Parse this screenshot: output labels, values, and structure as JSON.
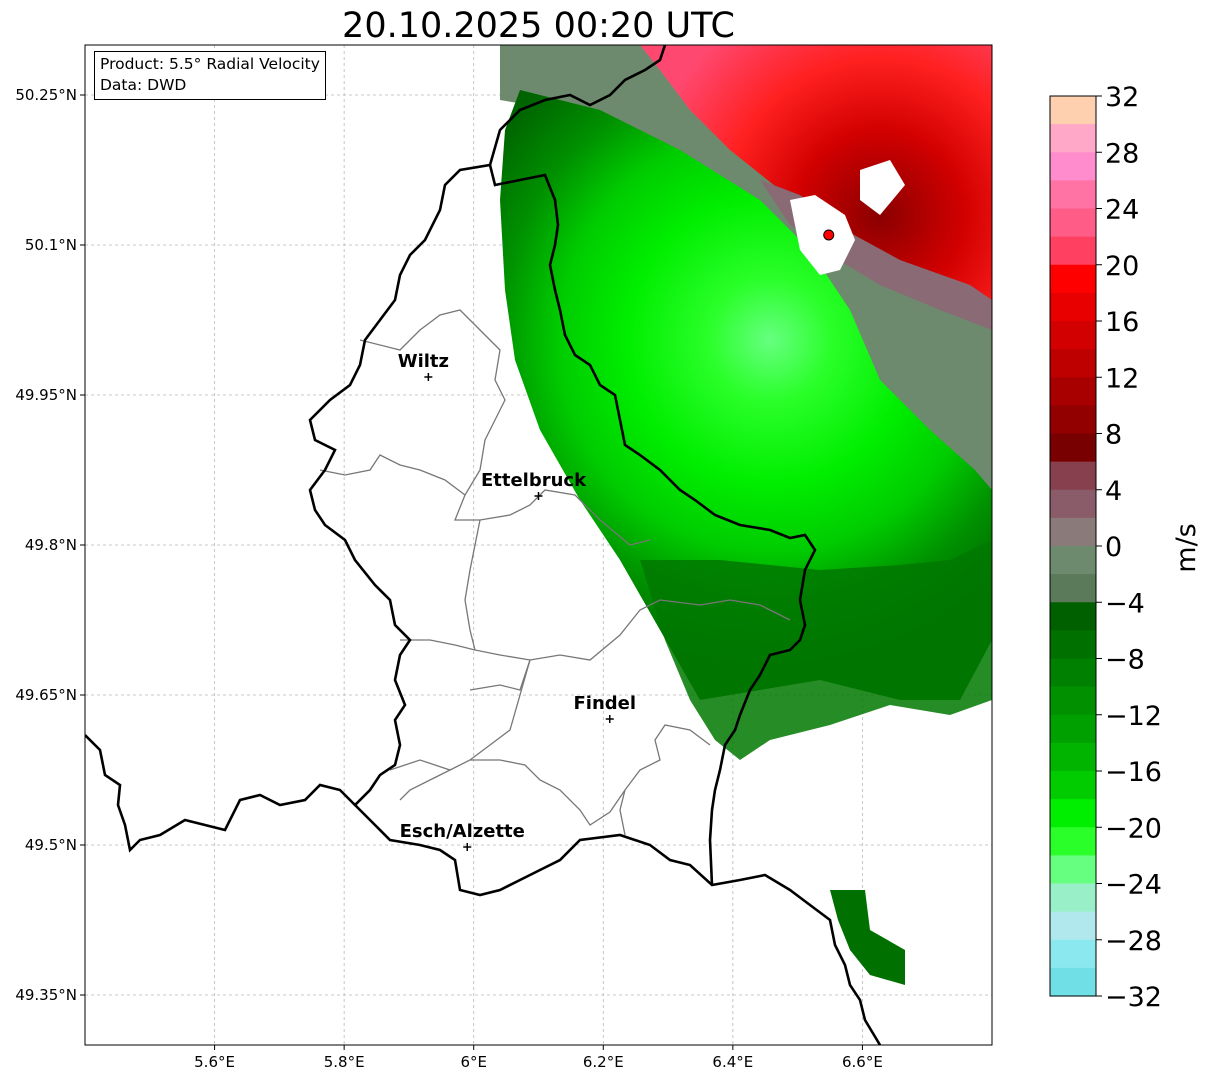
{
  "title": "20.10.2025 00:20 UTC",
  "legend": {
    "product": "Product: 5.5° Radial Velocity",
    "data": "Data: DWD"
  },
  "axes": {
    "lon_range": [
      5.4,
      6.8
    ],
    "lat_range": [
      49.3,
      50.3
    ],
    "lon_ticks": [
      {
        "value": 5.6,
        "label": "5.6°E"
      },
      {
        "value": 5.8,
        "label": "5.8°E"
      },
      {
        "value": 6.0,
        "label": "6°E"
      },
      {
        "value": 6.2,
        "label": "6.2°E"
      },
      {
        "value": 6.4,
        "label": "6.4°E"
      },
      {
        "value": 6.6,
        "label": "6.6°E"
      }
    ],
    "lat_ticks": [
      {
        "value": 50.25,
        "label": "50.25°N"
      },
      {
        "value": 50.1,
        "label": "50.1°N"
      },
      {
        "value": 49.95,
        "label": "49.95°N"
      },
      {
        "value": 49.8,
        "label": "49.8°N"
      },
      {
        "value": 49.65,
        "label": "49.65°N"
      },
      {
        "value": 49.5,
        "label": "49.5°N"
      },
      {
        "value": 49.35,
        "label": "49.35°N"
      }
    ],
    "grid": true
  },
  "cities": [
    {
      "name": "Wiltz",
      "lon": 5.93,
      "lat": 49.968
    },
    {
      "name": "Ettelbruck",
      "lon": 6.1,
      "lat": 49.849
    },
    {
      "name": "Findel",
      "lon": 6.21,
      "lat": 49.626
    },
    {
      "name": "Esch/Alzette",
      "lon": 5.99,
      "lat": 49.498
    }
  ],
  "radar_site": {
    "lon": 6.548,
    "lat": 50.11
  },
  "colorbar": {
    "unit": "m/s",
    "min": -32,
    "max": 32,
    "tick_labels": [
      "32",
      "28",
      "24",
      "20",
      "16",
      "12",
      "8",
      "4",
      "0",
      "−4",
      "−8",
      "−12",
      "−16",
      "−20",
      "−24",
      "−28",
      "−32"
    ],
    "colors_top_to_bottom": [
      "#ffd0b0",
      "#ffa8c8",
      "#ff8ccc",
      "#ff72a4",
      "#ff5c88",
      "#ff4060",
      "#ff0000",
      "#e80000",
      "#d20000",
      "#be0000",
      "#a80000",
      "#920000",
      "#780000",
      "#87404e",
      "#8a5c6a",
      "#8a7a7a",
      "#6e8a6e",
      "#5a7a5a",
      "#006000",
      "#007000",
      "#008000",
      "#009000",
      "#00a000",
      "#00b400",
      "#00cc00",
      "#00ee00",
      "#2aff2a",
      "#66ff80",
      "#99f0c8",
      "#b0e8ee",
      "#8ae8ee",
      "#70e0e6"
    ]
  }
}
